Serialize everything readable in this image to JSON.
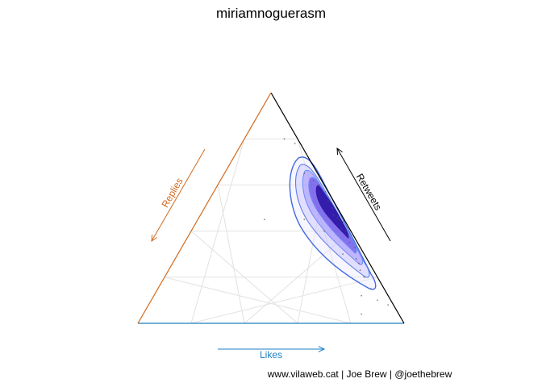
{
  "chart_data": {
    "type": "scatter",
    "subtype": "ternary",
    "title": "miriamnoguerasm",
    "axes": [
      {
        "label": "Likes",
        "color": "#1f7fc4",
        "side": "bottom"
      },
      {
        "label": "Retweets",
        "color": "#000000",
        "side": "right"
      },
      {
        "label": "Replies",
        "color": "#d2691e",
        "side": "left"
      }
    ],
    "range": [
      0,
      1
    ],
    "grid": true,
    "grid_step": 0.2,
    "points": [
      {
        "likes": 0.55,
        "retweets": 0.44,
        "replies": 0.01
      },
      {
        "likes": 0.52,
        "retweets": 0.46,
        "replies": 0.02
      },
      {
        "likes": 0.58,
        "retweets": 0.4,
        "replies": 0.02
      },
      {
        "likes": 0.6,
        "retweets": 0.38,
        "replies": 0.02
      },
      {
        "likes": 0.48,
        "retweets": 0.5,
        "replies": 0.02
      },
      {
        "likes": 0.5,
        "retweets": 0.47,
        "replies": 0.03
      },
      {
        "likes": 0.62,
        "retweets": 0.35,
        "replies": 0.03
      },
      {
        "likes": 0.45,
        "retweets": 0.53,
        "replies": 0.02
      },
      {
        "likes": 0.65,
        "retweets": 0.33,
        "replies": 0.02
      },
      {
        "likes": 0.68,
        "retweets": 0.28,
        "replies": 0.04
      },
      {
        "likes": 0.42,
        "retweets": 0.57,
        "replies": 0.01
      },
      {
        "likes": 0.56,
        "retweets": 0.41,
        "replies": 0.03
      },
      {
        "likes": 0.53,
        "retweets": 0.45,
        "replies": 0.02
      },
      {
        "likes": 0.7,
        "retweets": 0.26,
        "replies": 0.04
      },
      {
        "likes": 0.72,
        "retweets": 0.23,
        "replies": 0.05
      },
      {
        "likes": 0.38,
        "retweets": 0.6,
        "replies": 0.02
      },
      {
        "likes": 0.75,
        "retweets": 0.2,
        "replies": 0.05
      },
      {
        "likes": 0.8,
        "retweets": 0.15,
        "replies": 0.05
      },
      {
        "likes": 0.85,
        "retweets": 0.1,
        "replies": 0.05
      },
      {
        "likes": 0.9,
        "retweets": 0.08,
        "replies": 0.02
      },
      {
        "likes": 0.35,
        "retweets": 0.62,
        "replies": 0.03
      },
      {
        "likes": 0.3,
        "retweets": 0.65,
        "replies": 0.05
      },
      {
        "likes": 0.5,
        "retweets": 0.4,
        "replies": 0.1
      },
      {
        "likes": 0.4,
        "retweets": 0.45,
        "replies": 0.15
      },
      {
        "likes": 0.78,
        "retweets": 0.12,
        "replies": 0.1
      },
      {
        "likes": 0.82,
        "retweets": 0.04,
        "replies": 0.14
      },
      {
        "likes": 0.25,
        "retweets": 0.45,
        "replies": 0.3
      },
      {
        "likes": 0.2,
        "retweets": 0.78,
        "replies": 0.02
      },
      {
        "likes": 0.15,
        "retweets": 0.8,
        "replies": 0.05
      },
      {
        "likes": 0.62,
        "retweets": 0.3,
        "replies": 0.08
      }
    ]
  },
  "caption": "www.vilaweb.cat | Joe Brew | @joethebrew"
}
